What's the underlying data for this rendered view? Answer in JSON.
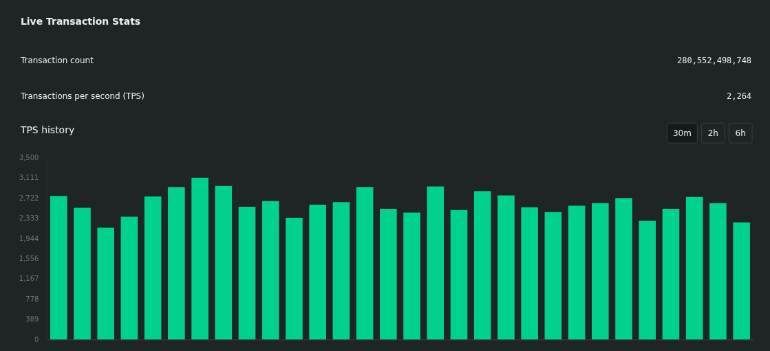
{
  "chart_data": {
    "type": "bar",
    "title": "Live Transaction Stats",
    "subtitle": "TPS history",
    "annotations": [
      "Transaction count",
      "280,552,498,748",
      "Transactions per second (TPS)",
      "2,264",
      "30m",
      "2h",
      "6h"
    ],
    "categories": [
      null,
      null,
      null,
      null,
      null,
      null,
      null,
      null,
      null,
      null,
      null,
      null,
      null,
      null,
      null,
      null,
      null,
      null,
      null,
      null,
      null,
      null,
      null,
      null,
      null,
      null,
      null,
      null,
      null,
      null
    ],
    "values": [
      2760,
      2530,
      2150,
      2360,
      2750,
      2930,
      3110,
      2950,
      2550,
      2660,
      2340,
      2590,
      2640,
      2930,
      2510,
      2440,
      2940,
      2490,
      2850,
      2770,
      2540,
      2450,
      2570,
      2620,
      2720,
      2280,
      2510,
      2740,
      2620,
      2250
    ],
    "color": "#00d18f",
    "ylim": [
      0,
      3500
    ],
    "yticks": [
      0,
      389,
      778,
      {
        "value": 1167,
        "label": "1,167"
      },
      {
        "value": 1556,
        "label": "1,556"
      },
      {
        "value": 1944,
        "label": "1,944"
      },
      {
        "value": 2333,
        "label": "2,333"
      },
      {
        "value": 2722,
        "label": "2,722"
      },
      {
        "value": 3111,
        "label": "3,111"
      },
      {
        "value": 3500,
        "label": "3,500"
      }
    ],
    "grid": false
  }
}
